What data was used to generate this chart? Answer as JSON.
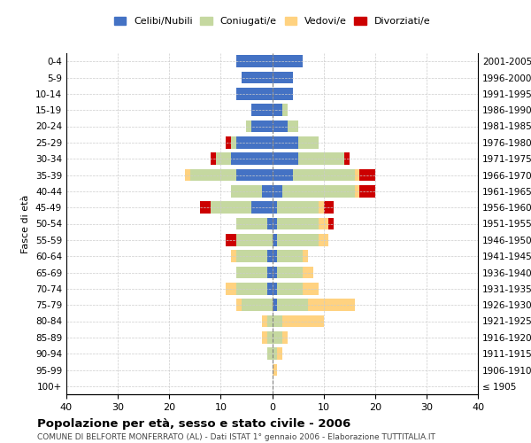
{
  "age_groups": [
    "100+",
    "95-99",
    "90-94",
    "85-89",
    "80-84",
    "75-79",
    "70-74",
    "65-69",
    "60-64",
    "55-59",
    "50-54",
    "45-49",
    "40-44",
    "35-39",
    "30-34",
    "25-29",
    "20-24",
    "15-19",
    "10-14",
    "5-9",
    "0-4"
  ],
  "birth_years": [
    "≤ 1905",
    "1906-1910",
    "1911-1915",
    "1916-1920",
    "1921-1925",
    "1926-1930",
    "1931-1935",
    "1936-1940",
    "1941-1945",
    "1946-1950",
    "1951-1955",
    "1956-1960",
    "1961-1965",
    "1966-1970",
    "1971-1975",
    "1976-1980",
    "1981-1985",
    "1986-1990",
    "1991-1995",
    "1996-2000",
    "2001-2005"
  ],
  "male": {
    "celibi": [
      0,
      0,
      0,
      0,
      0,
      0,
      1,
      1,
      1,
      0,
      1,
      4,
      2,
      7,
      8,
      7,
      4,
      4,
      7,
      6,
      7
    ],
    "coniugati": [
      0,
      0,
      1,
      1,
      1,
      6,
      6,
      6,
      6,
      7,
      6,
      8,
      6,
      9,
      3,
      1,
      1,
      0,
      0,
      0,
      0
    ],
    "vedovi": [
      0,
      0,
      0,
      1,
      1,
      1,
      2,
      0,
      1,
      0,
      0,
      0,
      0,
      1,
      0,
      0,
      0,
      0,
      0,
      0,
      0
    ],
    "divorziati": [
      0,
      0,
      0,
      0,
      0,
      0,
      0,
      0,
      0,
      2,
      0,
      2,
      0,
      0,
      1,
      1,
      0,
      0,
      0,
      0,
      0
    ]
  },
  "female": {
    "nubili": [
      0,
      0,
      0,
      0,
      0,
      1,
      1,
      1,
      1,
      1,
      1,
      1,
      2,
      4,
      5,
      5,
      3,
      2,
      4,
      4,
      6
    ],
    "coniugate": [
      0,
      0,
      1,
      2,
      2,
      6,
      5,
      5,
      5,
      8,
      8,
      8,
      14,
      12,
      9,
      4,
      2,
      1,
      0,
      0,
      0
    ],
    "vedove": [
      0,
      1,
      1,
      1,
      8,
      9,
      3,
      2,
      1,
      2,
      2,
      1,
      1,
      1,
      0,
      0,
      0,
      0,
      0,
      0,
      0
    ],
    "divorziate": [
      0,
      0,
      0,
      0,
      0,
      0,
      0,
      0,
      0,
      0,
      1,
      2,
      3,
      3,
      1,
      0,
      0,
      0,
      0,
      0,
      0
    ]
  },
  "colors": {
    "celibi_nubili": "#4472C4",
    "coniugati": "#C5D8A0",
    "vedovi": "#FFD280",
    "divorziati": "#CC0000"
  },
  "xlim": 40,
  "title": "Popolazione per età, sesso e stato civile - 2006",
  "subtitle": "COMUNE DI BELFORTE MONFERRATO (AL) - Dati ISTAT 1° gennaio 2006 - Elaborazione TUTTITALIA.IT",
  "ylabel_left": "Fasce di età",
  "legend_labels": [
    "Celibi/Nubili",
    "Coniugati/e",
    "Vedovi/e",
    "Divorziati/e"
  ],
  "background_color": "#ffffff",
  "grid_color": "#cccccc"
}
